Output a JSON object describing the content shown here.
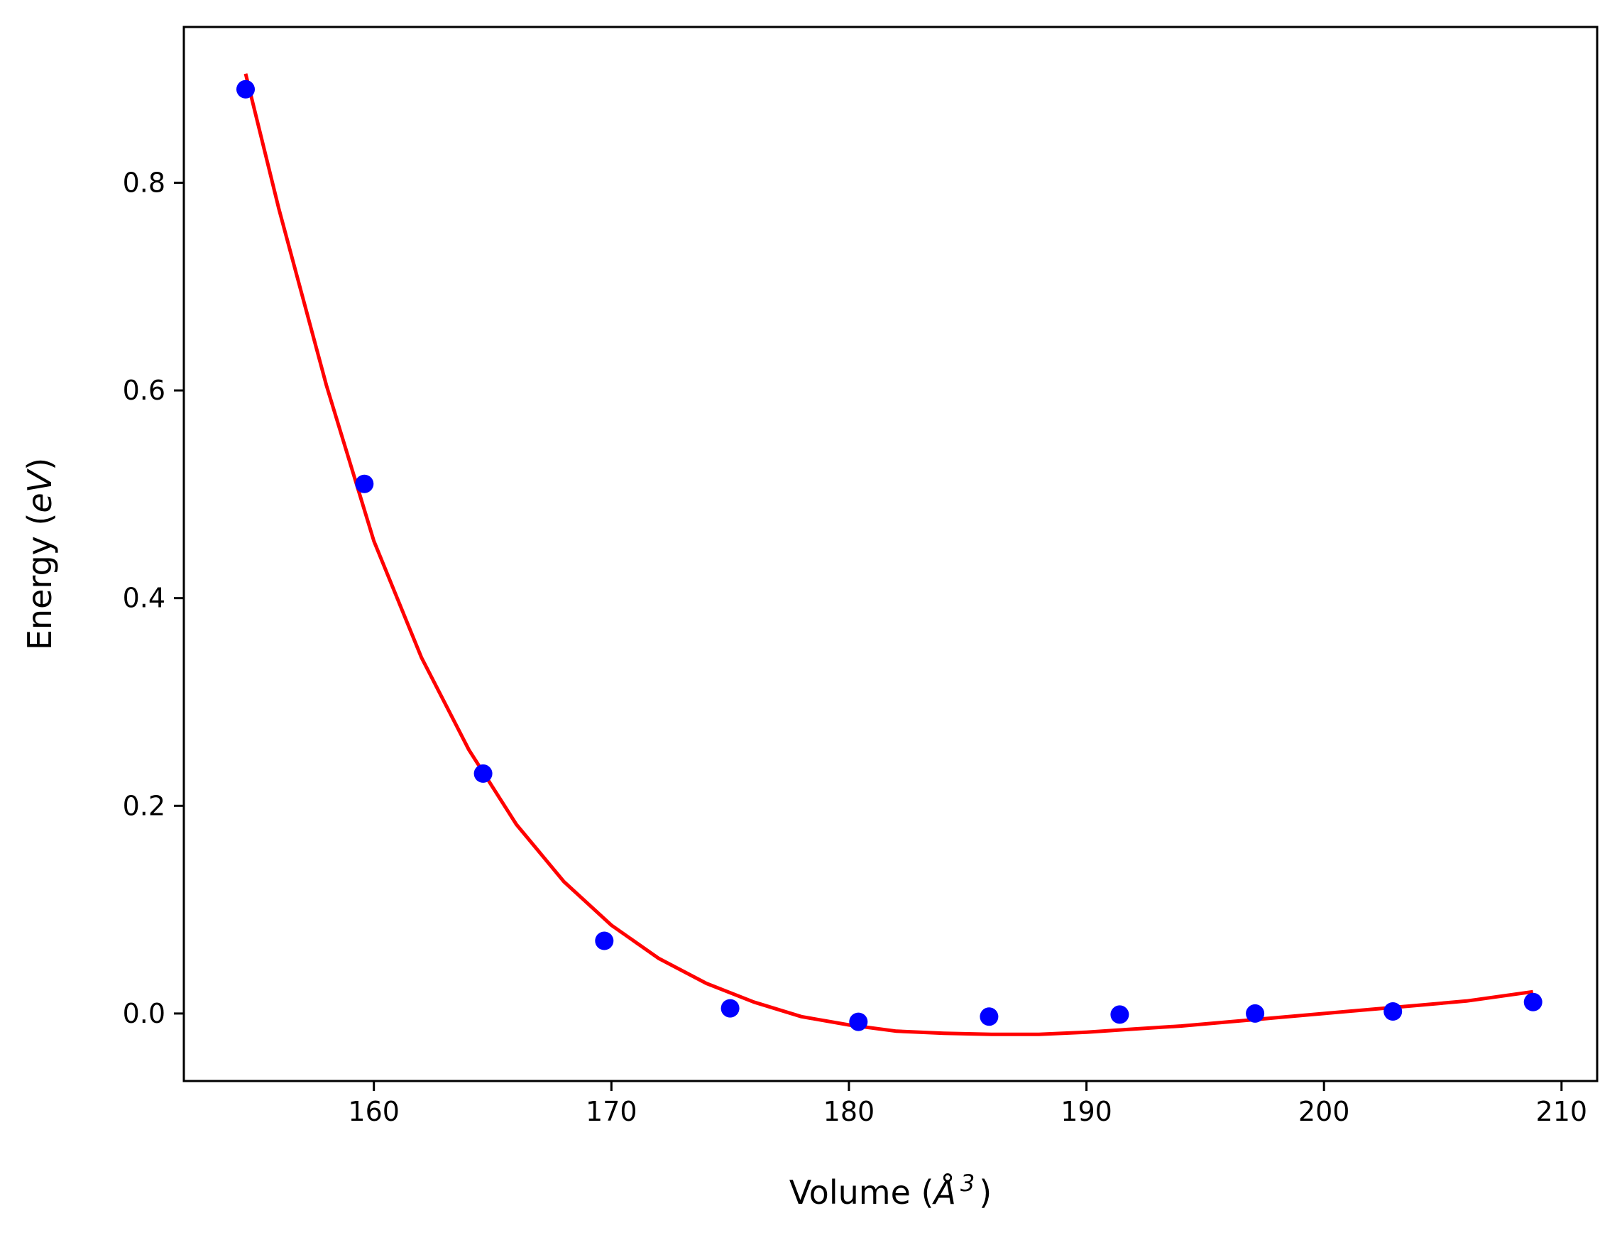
{
  "chart_data": {
    "type": "scatter",
    "title": "",
    "xlabel": "Volume ($\\AA^3$)",
    "ylabel": "Energy ($eV$)",
    "xlabel_parts": {
      "prefix": "Volume (",
      "symbol": "Å",
      "sup": "3",
      "suffix": ")"
    },
    "ylabel_parts": {
      "prefix": "Energy (",
      "unit": "eV",
      "suffix": ")"
    },
    "xlim": [
      152.0,
      211.5
    ],
    "ylim": [
      -0.065,
      0.95
    ],
    "xticks": [
      160,
      170,
      180,
      190,
      200,
      210
    ],
    "yticks": [
      0.0,
      0.2,
      0.4,
      0.6,
      0.8
    ],
    "xtick_labels": [
      "160",
      "170",
      "180",
      "190",
      "200",
      "210"
    ],
    "ytick_labels": [
      "0.0",
      "0.2",
      "0.4",
      "0.6",
      "0.8"
    ],
    "grid": false,
    "legend": "none",
    "series": [
      {
        "kind": "scatter",
        "color": "#0000ff",
        "x": [
          154.6,
          159.6,
          164.6,
          169.7,
          175.0,
          180.4,
          185.9,
          191.4,
          197.1,
          202.9,
          208.8
        ],
        "y": [
          0.89,
          0.51,
          0.231,
          0.07,
          0.005,
          -0.008,
          -0.003,
          -0.001,
          0.0,
          0.002,
          0.011
        ]
      },
      {
        "kind": "line",
        "color": "#ff0000",
        "x": [
          154.6,
          156.0,
          158.0,
          160.0,
          162.0,
          164.0,
          166.0,
          168.0,
          170.0,
          172.0,
          174.0,
          176.0,
          178.0,
          180.0,
          182.0,
          184.0,
          186.0,
          188.0,
          190.0,
          192.0,
          194.0,
          196.0,
          198.0,
          200.0,
          202.0,
          204.0,
          206.0,
          208.8
        ],
        "y": [
          0.905,
          0.775,
          0.605,
          0.455,
          0.343,
          0.254,
          0.182,
          0.127,
          0.085,
          0.053,
          0.029,
          0.011,
          -0.003,
          -0.011,
          -0.017,
          -0.019,
          -0.02,
          -0.02,
          -0.018,
          -0.015,
          -0.012,
          -0.008,
          -0.004,
          0.0,
          0.004,
          0.008,
          0.012,
          0.021
        ]
      }
    ]
  }
}
